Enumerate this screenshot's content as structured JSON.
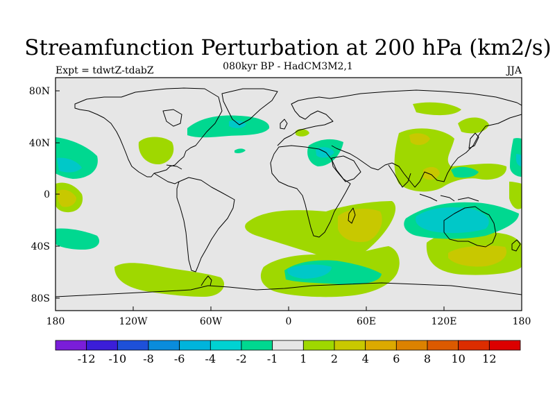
{
  "title": "Streamfunction Perturbation at 200 hPa (km2/s)",
  "left_string": "Expt = tdwtZ-tdabZ",
  "center_string": "080kyr BP - HadCM3M2,1",
  "right_string": "JJA",
  "colors": {
    "ocean_land_bg": "#e6e6e6",
    "coast": "#000000",
    "pos_1_2": "#9fd800",
    "pos_2_4": "#c8c800",
    "pos_4_6": "#dcaa00",
    "neg_-2_-1": "#00d890",
    "neg_-4_-2": "#00c8c8"
  },
  "map": {
    "projection": "cylindrical equidistant",
    "lon_range": [
      -180,
      180
    ],
    "lat_range": [
      -90,
      90
    ],
    "x_tick_labels": [
      "180",
      "120W",
      "60W",
      "0",
      "60E",
      "120E",
      "180"
    ],
    "y_tick_labels": [
      "80N",
      "40N",
      "0",
      "40S",
      "80S"
    ]
  },
  "colorbar": {
    "colors": [
      "#7a1ed9",
      "#3b1ed9",
      "#1e50d9",
      "#0a8cdc",
      "#00b4dc",
      "#00d2d2",
      "#00d890",
      "#e6e6e6",
      "#9fd800",
      "#c8c800",
      "#dcaa00",
      "#dc8200",
      "#dc5a00",
      "#dc2d00",
      "#dc0000"
    ],
    "labels": [
      "-12",
      "-10",
      "-8",
      "-6",
      "-4",
      "-2",
      "-1",
      "1",
      "2",
      "4",
      "6",
      "8",
      "10",
      "12"
    ]
  }
}
